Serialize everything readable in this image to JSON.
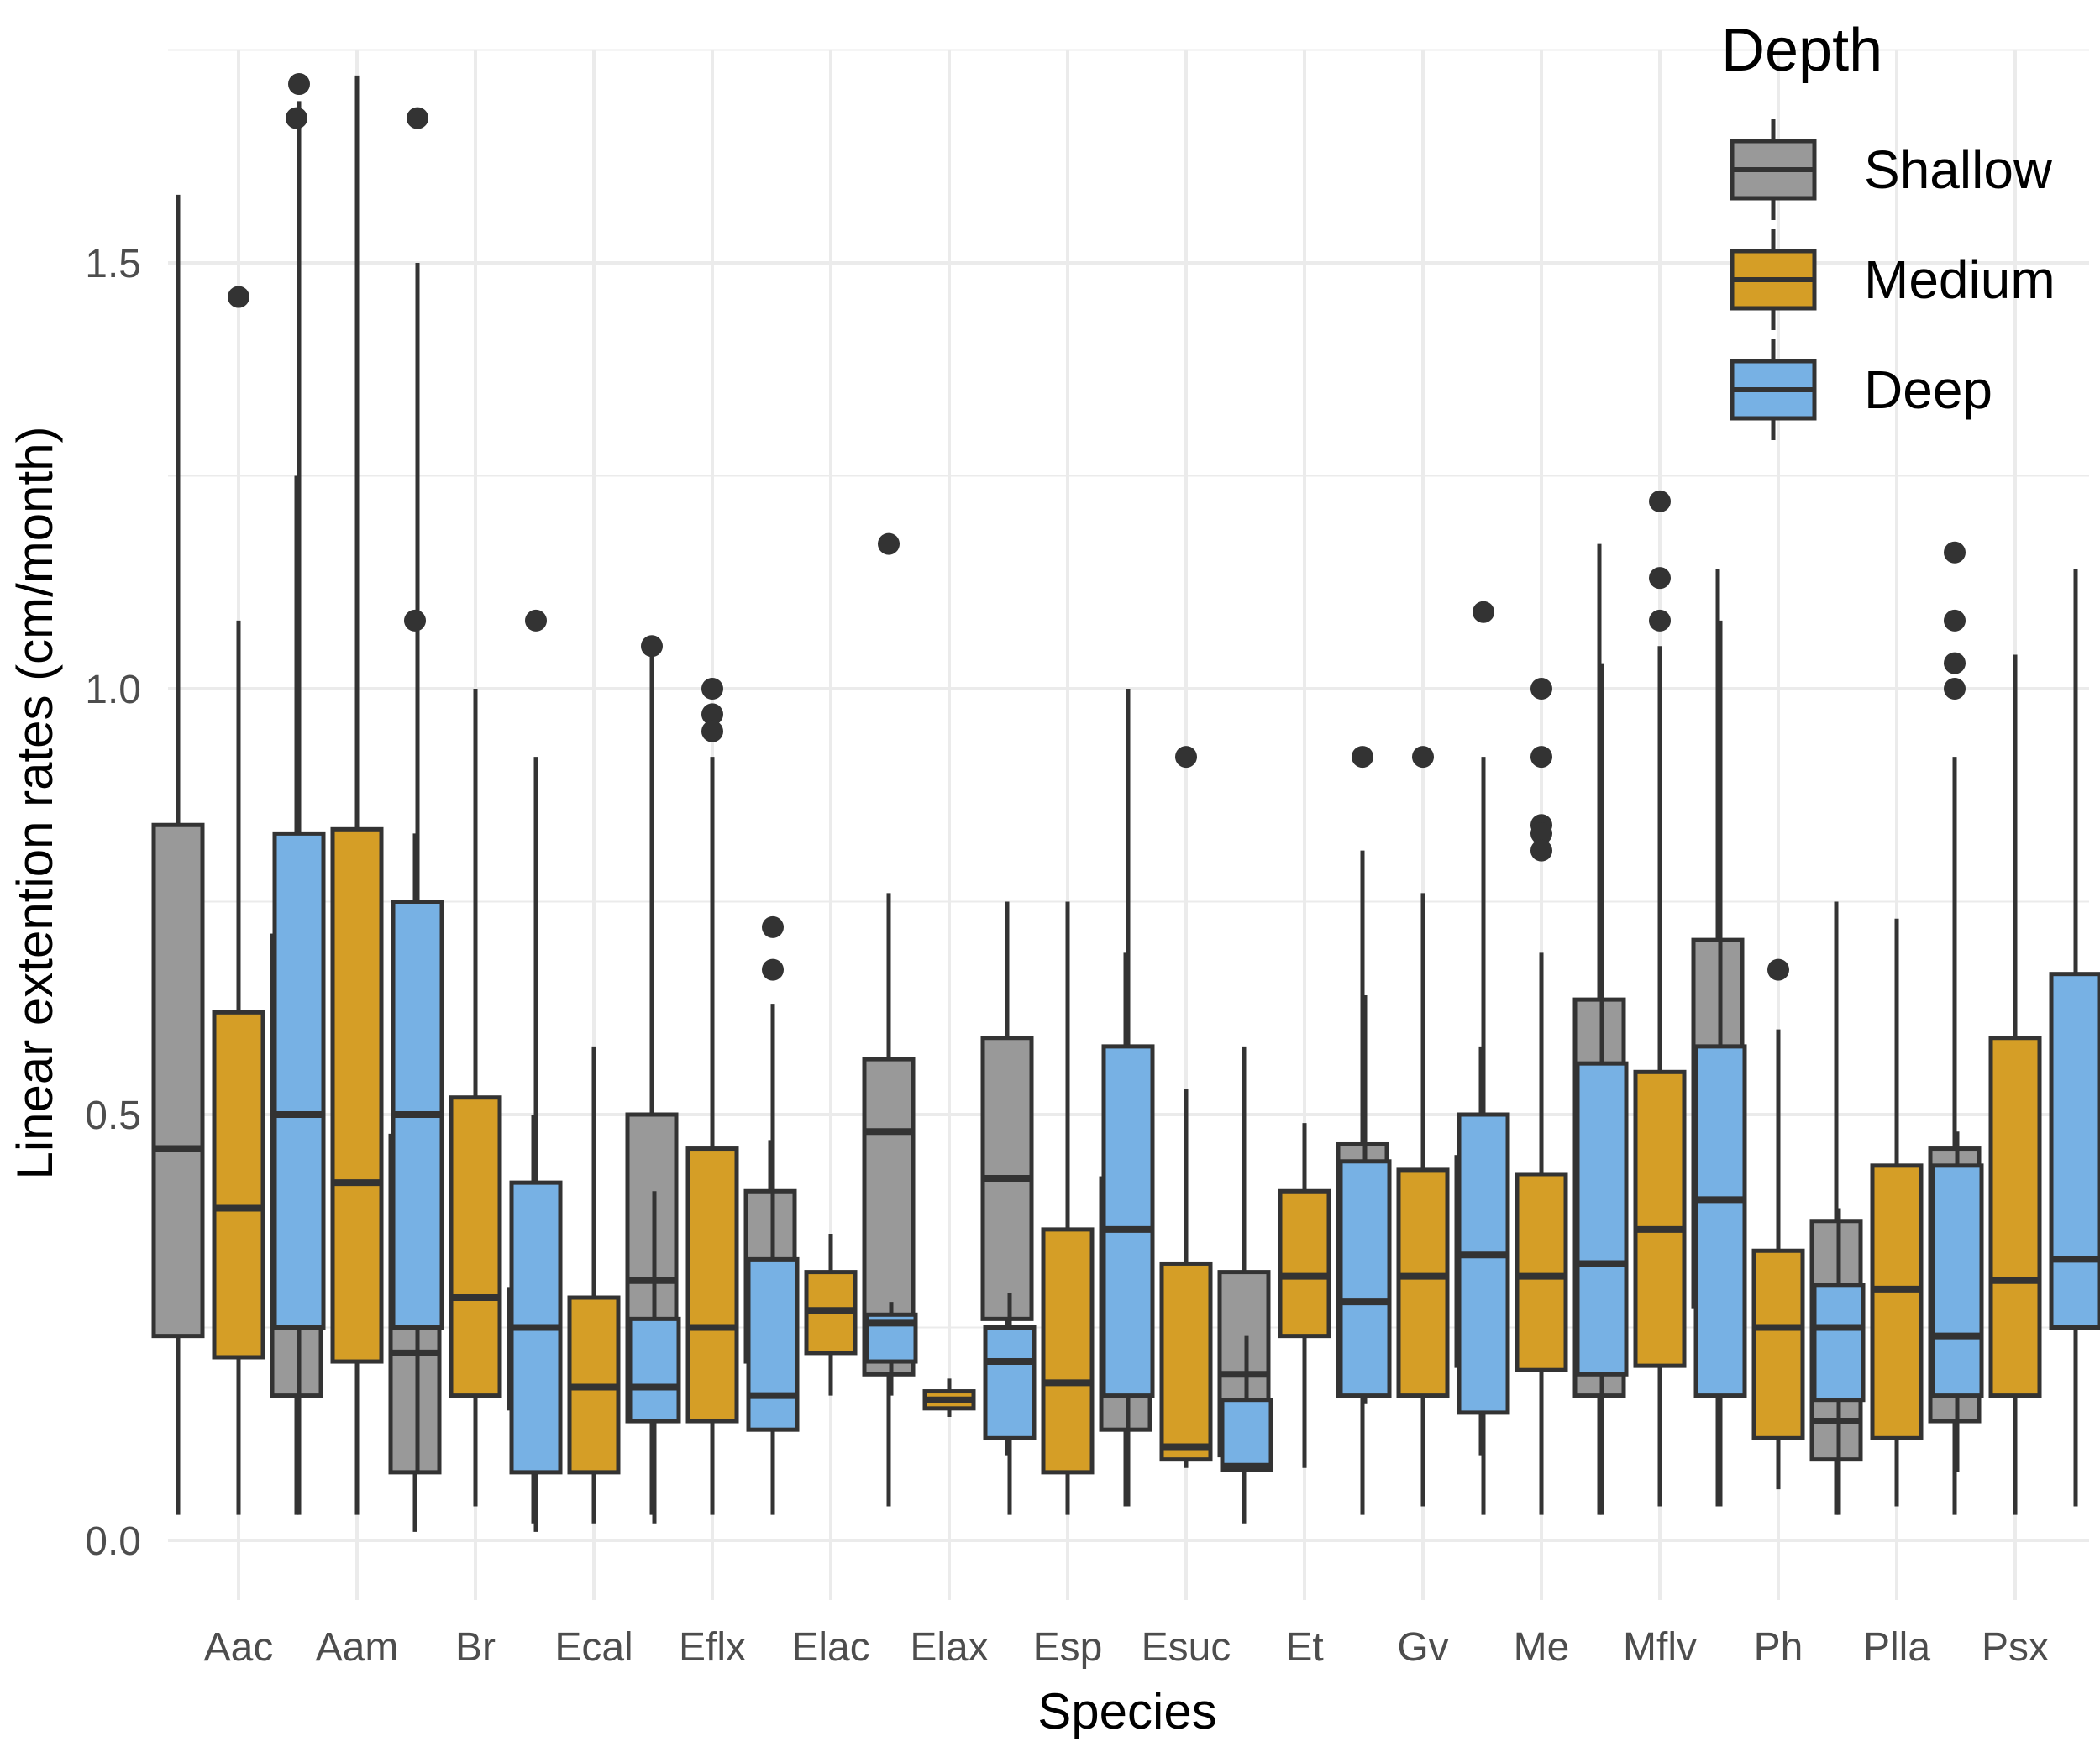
{
  "chart_data": {
    "type": "boxplot",
    "xlabel": "Species",
    "ylabel": "Linear extention rates (cm/month)",
    "ylim": [
      -0.07,
      1.75
    ],
    "yticks": [
      "0.0",
      "0.5",
      "1.0",
      "1.5"
    ],
    "ytick_values": [
      0,
      0.5,
      1.0,
      1.5
    ],
    "grid": true,
    "legend": {
      "title": "Depth",
      "placement": "top-right"
    },
    "categories": [
      "Aac",
      "Aam",
      "Br",
      "Ecal",
      "Eflx",
      "Elac",
      "Elax",
      "Esp",
      "Esuc",
      "Et",
      "Gv",
      "Me",
      "Mflv",
      "Ph",
      "Plla",
      "Psx"
    ],
    "series": [
      {
        "name": "Shallow",
        "color": "#999999",
        "boxes": [
          [
            0.03,
            0.24,
            0.46,
            0.84,
            1.58,
            []
          ],
          [
            0.03,
            0.17,
            0.33,
            0.71,
            1.25,
            [
              1.67
            ]
          ],
          [
            0.01,
            0.08,
            0.22,
            0.475,
            0.83,
            [
              1.08
            ]
          ],
          [
            0.02,
            0.155,
            0.2,
            0.295,
            0.5,
            []
          ],
          [
            0.03,
            0.14,
            0.305,
            0.5,
            1.04,
            [
              1.05
            ]
          ],
          [
            0.17,
            0.21,
            0.31,
            0.41,
            0.47,
            []
          ],
          [
            0.04,
            0.195,
            0.48,
            0.565,
            0.76,
            [
              1.17
            ]
          ],
          [
            0.1,
            0.26,
            0.425,
            0.59,
            0.75,
            []
          ],
          [
            0.04,
            0.13,
            0.25,
            0.425,
            0.69,
            []
          ],
          [
            0.02,
            0.1,
            0.195,
            0.315,
            0.58,
            []
          ],
          [
            0.03,
            0.17,
            0.325,
            0.465,
            0.81,
            [
              0.92
            ]
          ],
          [
            0.1,
            0.205,
            0.28,
            0.45,
            0.58,
            []
          ],
          [
            0.03,
            0.17,
            0.39,
            0.635,
            1.17,
            []
          ],
          [
            0.04,
            0.275,
            0.46,
            0.705,
            1.14,
            []
          ],
          [
            0.03,
            0.095,
            0.14,
            0.375,
            0.75,
            []
          ],
          [
            0.03,
            0.14,
            0.285,
            0.46,
            0.92,
            [
              1.16,
              1.08,
              1.03,
              1.0
            ]
          ]
        ]
      },
      {
        "name": "Medium",
        "color": "#D59E26",
        "boxes": [
          [
            0.03,
            0.215,
            0.39,
            0.62,
            1.08,
            [
              1.46
            ]
          ],
          [
            0.03,
            0.21,
            0.42,
            0.835,
            1.72,
            []
          ],
          [
            0.04,
            0.17,
            0.285,
            0.52,
            1.0,
            []
          ],
          [
            0.02,
            0.08,
            0.18,
            0.285,
            0.58,
            []
          ],
          [
            0.03,
            0.14,
            0.25,
            0.46,
            0.92,
            [
              1.0,
              0.97,
              0.95
            ]
          ],
          [
            0.17,
            0.22,
            0.27,
            0.315,
            0.36,
            []
          ],
          [
            0.145,
            0.155,
            0.165,
            0.175,
            0.19,
            []
          ],
          [
            0.03,
            0.08,
            0.185,
            0.365,
            0.75,
            []
          ],
          [
            0.085,
            0.095,
            0.11,
            0.325,
            0.53,
            [
              0.92
            ]
          ],
          [
            0.085,
            0.24,
            0.31,
            0.41,
            0.49,
            []
          ],
          [
            0.04,
            0.17,
            0.31,
            0.435,
            0.76,
            [
              0.92
            ]
          ],
          [
            0.03,
            0.2,
            0.31,
            0.43,
            0.69,
            [
              1.0,
              0.92,
              0.84,
              0.83,
              0.81
            ]
          ],
          [
            0.04,
            0.205,
            0.365,
            0.55,
            1.05,
            [
              1.22,
              1.13,
              1.08
            ]
          ],
          [
            0.06,
            0.12,
            0.25,
            0.34,
            0.6,
            [
              0.67
            ]
          ],
          [
            0.04,
            0.12,
            0.295,
            0.44,
            0.73,
            []
          ],
          [
            0.03,
            0.17,
            0.305,
            0.59,
            1.04,
            []
          ]
        ]
      },
      {
        "name": "Deep",
        "color": "#77B1E4",
        "boxes": [
          [
            0.03,
            0.25,
            0.5,
            0.83,
            1.69,
            [
              1.71
            ]
          ],
          [
            0.08,
            0.25,
            0.5,
            0.75,
            1.5,
            [
              1.67
            ]
          ],
          [
            0.01,
            0.08,
            0.25,
            0.42,
            0.92,
            [
              1.08
            ]
          ],
          [
            0.02,
            0.14,
            0.18,
            0.26,
            0.41,
            []
          ],
          [
            0.03,
            0.13,
            0.17,
            0.33,
            0.63,
            [
              0.72,
              0.67
            ]
          ],
          [
            0.17,
            0.21,
            0.255,
            0.265,
            0.28,
            []
          ],
          [
            0.03,
            0.12,
            0.21,
            0.25,
            0.29,
            []
          ],
          [
            0.04,
            0.17,
            0.365,
            0.58,
            1.0,
            []
          ],
          [
            0.08,
            0.083,
            0.087,
            0.165,
            0.24,
            []
          ],
          [
            0.16,
            0.17,
            0.28,
            0.445,
            0.64,
            []
          ],
          [
            0.03,
            0.15,
            0.335,
            0.5,
            0.92,
            [
              1.09
            ]
          ],
          [
            0.03,
            0.195,
            0.325,
            0.56,
            1.03,
            []
          ],
          [
            0.04,
            0.17,
            0.4,
            0.58,
            1.08,
            []
          ],
          [
            0.03,
            0.165,
            0.25,
            0.3,
            0.39,
            []
          ],
          [
            0.08,
            0.17,
            0.24,
            0.44,
            0.48,
            []
          ],
          [
            0.04,
            0.25,
            0.33,
            0.665,
            1.14,
            []
          ]
        ]
      }
    ]
  }
}
